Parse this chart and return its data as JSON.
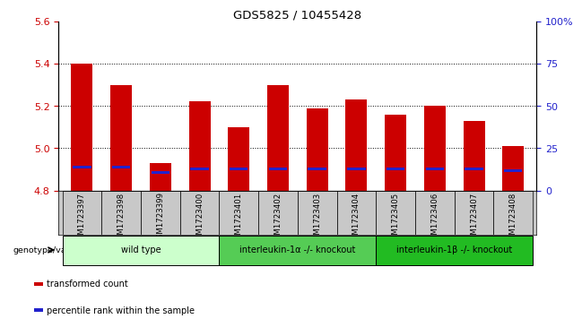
{
  "title": "GDS5825 / 10455428",
  "samples": [
    "GSM1723397",
    "GSM1723398",
    "GSM1723399",
    "GSM1723400",
    "GSM1723401",
    "GSM1723402",
    "GSM1723403",
    "GSM1723404",
    "GSM1723405",
    "GSM1723406",
    "GSM1723407",
    "GSM1723408"
  ],
  "red_values": [
    5.4,
    5.3,
    4.93,
    5.22,
    5.1,
    5.3,
    5.19,
    5.23,
    5.16,
    5.2,
    5.13,
    5.01
  ],
  "blue_values": [
    4.91,
    4.91,
    4.885,
    4.9,
    4.9,
    4.9,
    4.9,
    4.9,
    4.9,
    4.9,
    4.9,
    4.895
  ],
  "ylim_left": [
    4.8,
    5.6
  ],
  "ylim_right": [
    0,
    100
  ],
  "yticks_left": [
    4.8,
    5.0,
    5.2,
    5.4,
    5.6
  ],
  "yticks_right": [
    0,
    25,
    50,
    75,
    100
  ],
  "ytick_labels_right": [
    "0",
    "25",
    "50",
    "75",
    "100%"
  ],
  "bar_bottom": 4.8,
  "red_color": "#CC0000",
  "blue_color": "#2222CC",
  "tick_bg": "#C8C8C8",
  "groups": [
    {
      "label": "wild type",
      "start": 0,
      "end": 3,
      "color": "#CCFFCC"
    },
    {
      "label": "interleukin-1α -/- knockout",
      "start": 4,
      "end": 7,
      "color": "#55CC55"
    },
    {
      "label": "interleukin-1β -/- knockout",
      "start": 8,
      "end": 11,
      "color": "#22BB22"
    }
  ],
  "genotype_label": "genotype/variation",
  "legend_items": [
    {
      "label": "transformed count",
      "color": "#CC0000"
    },
    {
      "label": "percentile rank within the sample",
      "color": "#2222CC"
    }
  ],
  "grid_yticks": [
    5.0,
    5.2,
    5.4
  ]
}
